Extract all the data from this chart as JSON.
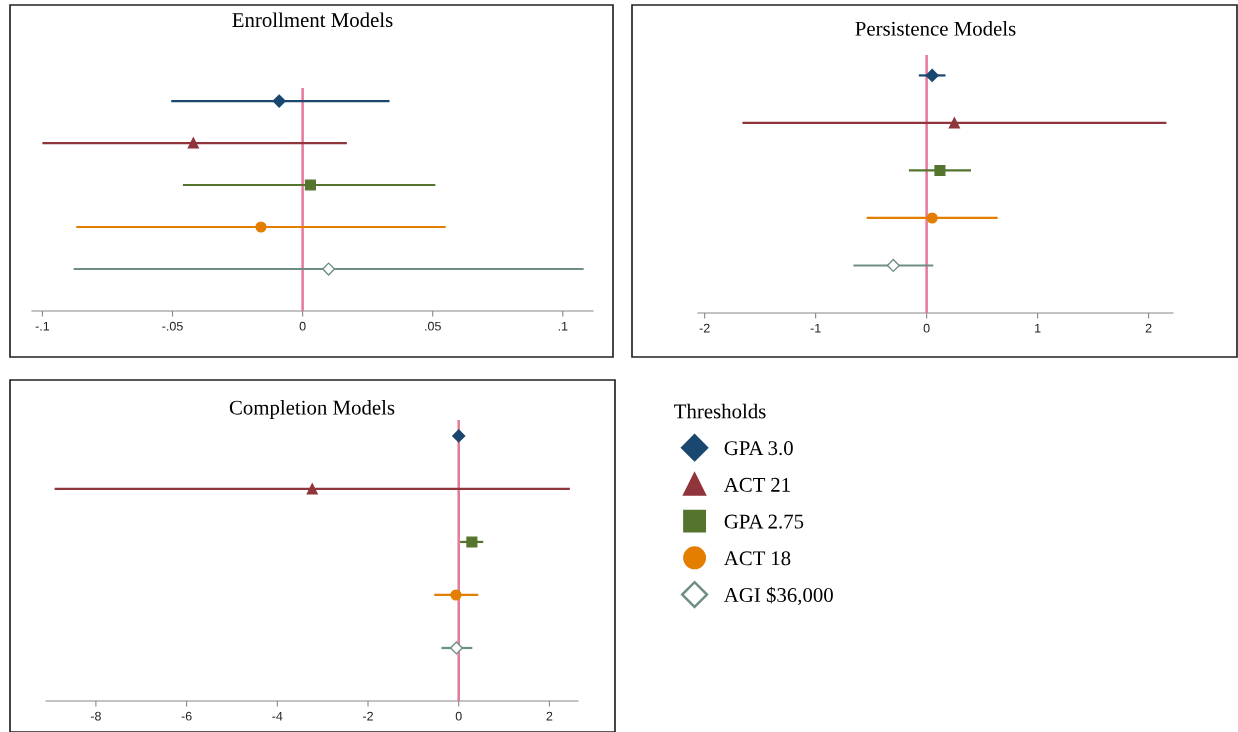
{
  "chart_data": [
    {
      "type": "scatter",
      "title": "Enrollment Models",
      "orientation": "horizontal",
      "categories": [
        null,
        null,
        null,
        null,
        null
      ],
      "legend": false,
      "grid": false,
      "xlim": [
        -0.104,
        0.1116
      ],
      "xticks": [
        {
          "value": -0.1,
          "label": "-.1"
        },
        {
          "value": -0.05,
          "label": "-.05"
        },
        0,
        {
          "value": 0.05,
          "label": ".05"
        },
        {
          "value": 0.1,
          "label": ".1"
        }
      ],
      "ref_lines": [
        {
          "axis": "x",
          "value": 0,
          "color": "#e37a96"
        }
      ],
      "series": [
        {
          "color": "#1a476f",
          "marker": "diamond",
          "values": [
            -0.009,
            null,
            null,
            null,
            null
          ],
          "errors": [
            [
              -0.0505,
              0.0334
            ],
            null,
            null,
            null,
            null
          ]
        },
        {
          "color": "#90353b",
          "marker": "triangle",
          "values": [
            null,
            -0.042,
            null,
            null,
            null
          ],
          "errors": [
            null,
            [
              -0.1,
              0.017
            ],
            null,
            null,
            null
          ]
        },
        {
          "color": "#55752f",
          "marker": "square",
          "values": [
            null,
            null,
            0.003,
            null,
            null
          ],
          "errors": [
            null,
            null,
            [
              -0.046,
              0.051
            ],
            null,
            null
          ]
        },
        {
          "color": "#e37e00",
          "marker": "circle",
          "values": [
            null,
            null,
            null,
            -0.016,
            null
          ],
          "errors": [
            null,
            null,
            null,
            [
              -0.087,
              0.055
            ],
            null
          ]
        },
        {
          "color": "#6e8e84",
          "marker": "diamond",
          "values": [
            null,
            null,
            null,
            null,
            0.01
          ],
          "errors": [
            null,
            null,
            null,
            null,
            [
              -0.088,
              0.108
            ]
          ]
        }
      ]
    },
    {
      "type": "scatter",
      "title": "Persistence Models",
      "orientation": "horizontal",
      "categories": [
        null,
        null,
        null,
        null,
        null
      ],
      "legend": false,
      "grid": false,
      "xlim": [
        -2.06,
        2.22
      ],
      "xticks": [
        -2,
        -1,
        0,
        1,
        2
      ],
      "ref_lines": [
        {
          "axis": "x",
          "value": 0,
          "color": "#e37a96"
        }
      ],
      "series": [
        {
          "color": "#1a476f",
          "marker": "diamond",
          "values": [
            0.05,
            null,
            null,
            null,
            null
          ],
          "errors": [
            [
              -0.07,
              0.17
            ],
            null,
            null,
            null,
            null
          ]
        },
        {
          "color": "#90353b",
          "marker": "triangle",
          "values": [
            null,
            0.25,
            null,
            null,
            null
          ],
          "errors": [
            null,
            [
              -1.66,
              2.16
            ],
            null,
            null,
            null
          ]
        },
        {
          "color": "#55752f",
          "marker": "square",
          "values": [
            null,
            null,
            0.12,
            null,
            null
          ],
          "errors": [
            null,
            null,
            [
              -0.16,
              0.4
            ],
            null,
            null
          ]
        },
        {
          "color": "#e37e00",
          "marker": "circle",
          "values": [
            null,
            null,
            null,
            0.05,
            null
          ],
          "errors": [
            null,
            null,
            null,
            [
              -0.54,
              0.64
            ],
            null
          ]
        },
        {
          "color": "#6e8e84",
          "marker": "diamond",
          "values": [
            null,
            null,
            null,
            null,
            -0.3
          ],
          "errors": [
            null,
            null,
            null,
            null,
            [
              -0.66,
              0.06
            ]
          ]
        }
      ]
    },
    {
      "type": "scatter",
      "title": "Completion Models",
      "orientation": "horizontal",
      "categories": [
        null,
        null,
        null,
        null,
        null
      ],
      "legend": "right",
      "legend_title": "Thresholds",
      "grid": false,
      "xlim": [
        -9.1,
        2.63
      ],
      "xticks": [
        -8,
        -6,
        -4,
        -2,
        0,
        2
      ],
      "ref_lines": [
        {
          "axis": "x",
          "value": 0,
          "color": "#e37a96"
        }
      ],
      "series": [
        {
          "name": "GPA 3.0",
          "color": "#1a476f",
          "marker": "diamond",
          "values": [
            0,
            null,
            null,
            null,
            null
          ]
        },
        {
          "name": "ACT 21",
          "color": "#90353b",
          "marker": "triangle",
          "values": [
            null,
            -3.23,
            null,
            null,
            null
          ],
          "errors": [
            null,
            [
              -8.91,
              2.45
            ],
            null,
            null,
            null
          ]
        },
        {
          "name": "GPA 2.75",
          "color": "#55752f",
          "marker": "square",
          "values": [
            null,
            null,
            0.29,
            null,
            null
          ],
          "errors": [
            null,
            null,
            [
              0.03,
              0.54
            ],
            null,
            null
          ]
        },
        {
          "name": "ACT 18",
          "color": "#e37e00",
          "marker": "circle",
          "values": [
            null,
            null,
            null,
            -0.06,
            null
          ],
          "errors": [
            null,
            null,
            null,
            [
              -0.54,
              0.43
            ],
            null
          ]
        },
        {
          "name": "AGI $36,000",
          "color": "#6e8e84",
          "marker": "diamond",
          "values": [
            null,
            null,
            null,
            null,
            -0.05
          ],
          "errors": [
            null,
            null,
            null,
            null,
            [
              -0.38,
              0.3
            ]
          ]
        }
      ]
    }
  ]
}
